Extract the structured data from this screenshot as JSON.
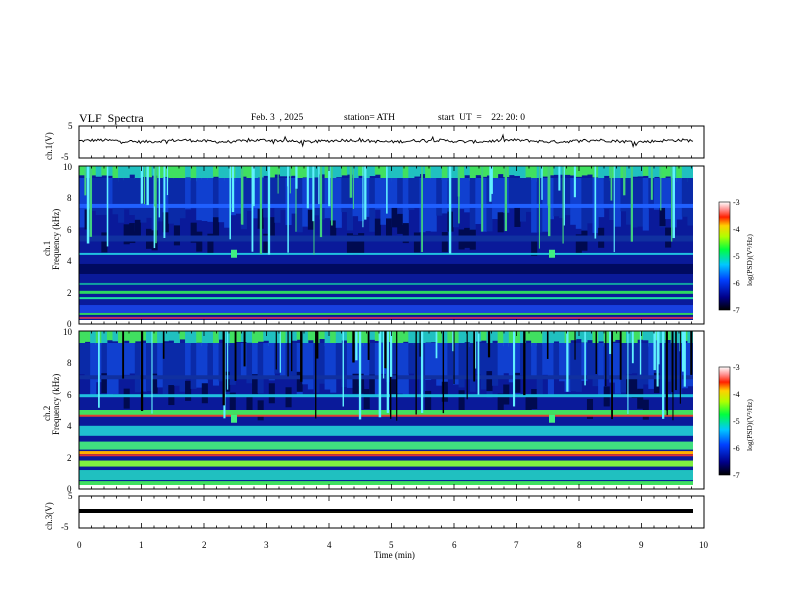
{
  "header": {
    "title": "VLF  Spectra",
    "date": "Feb. 3  , 2025",
    "station": "station= ATH",
    "start": "start  UT  =    22: 20: 0"
  },
  "chart_data": [
    {
      "type": "line",
      "ylabel": "ch.1(V)",
      "yticks": [
        "5",
        "-5"
      ],
      "ylim": [
        -5,
        5
      ],
      "series": [
        {
          "values": [
            0.2,
            0.1,
            0.0,
            0.3,
            -0.2,
            0.1
          ]
        }
      ]
    },
    {
      "type": "heatmap",
      "ylabel_line1": "ch.1",
      "ylabel_line2": "Frequency (kHz)",
      "yticks": [
        "10",
        "8",
        "6",
        "4",
        "2",
        "0"
      ],
      "ylim": [
        0,
        10
      ],
      "colorbar": {
        "label": "log(PSD)(V²/Hz)",
        "ticks": [
          "-3",
          "-4",
          "-5",
          "-6",
          "-7"
        ],
        "range": [
          -7,
          -3
        ]
      }
    },
    {
      "type": "heatmap",
      "ylabel_line1": "ch.2",
      "ylabel_line2": "Frequency (kHz)",
      "yticks": [
        "10",
        "8",
        "6",
        "4",
        "2",
        "0"
      ],
      "ylim": [
        0,
        10
      ],
      "colorbar": {
        "label": "log(PSD)(V²/Hz)",
        "ticks": [
          "-3",
          "-4",
          "-5",
          "-6",
          "-7"
        ],
        "range": [
          -7,
          -3
        ]
      }
    },
    {
      "type": "line",
      "ylabel": "ch.3(V)",
      "yticks": [
        "5",
        "-5"
      ],
      "ylim": [
        -5,
        5
      ],
      "series": [
        {
          "values": [
            -1.0,
            -1.0,
            -1.0,
            -1.0,
            -1.0,
            -1.0
          ]
        }
      ]
    }
  ],
  "xaxis": {
    "label": "Time  (min)",
    "ticks": [
      "0",
      "1",
      "2",
      "3",
      "4",
      "5",
      "6",
      "7",
      "8",
      "9",
      "10"
    ],
    "xlim": [
      0,
      10
    ]
  }
}
